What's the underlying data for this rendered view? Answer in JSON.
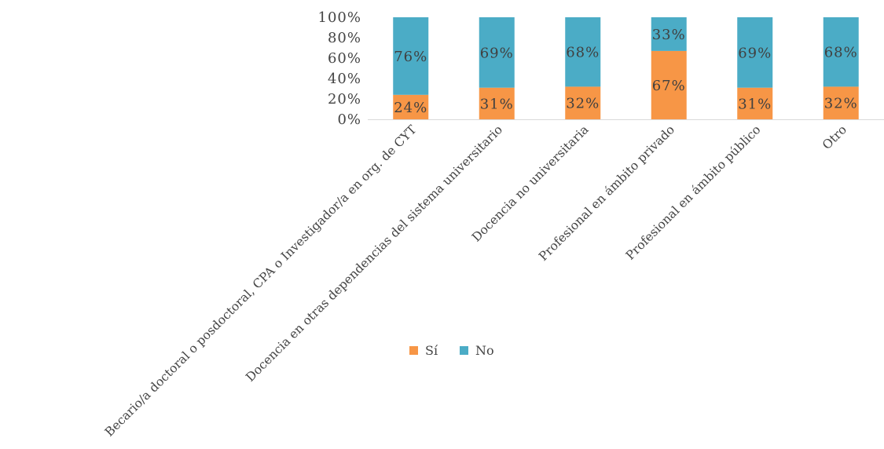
{
  "chart_data": {
    "type": "bar",
    "stacked": true,
    "percent_stacked": true,
    "categories": [
      "Becario/a doctoral o posdoctoral, CPA o Investigador/a en org. de CYT",
      "Docencia en otras dependencias del sistema universitario",
      "Docencia no universitaria",
      "Profesional en ámbito privado",
      "Profesional en ámbito público",
      "Otro"
    ],
    "series": [
      {
        "name": "Sí",
        "color": "#F79646",
        "values": [
          24,
          31,
          32,
          67,
          31,
          32
        ],
        "labels": [
          "24%",
          "31%",
          "32%",
          "67%",
          "31%",
          "32%"
        ]
      },
      {
        "name": "No",
        "color": "#4BACC6",
        "values": [
          76,
          69,
          68,
          33,
          69,
          68
        ],
        "labels": [
          "76%",
          "69%",
          "68%",
          "33%",
          "69%",
          "68%"
        ]
      }
    ],
    "ylim": [
      0,
      100
    ],
    "yticks": [
      "0%",
      "20%",
      "40%",
      "60%",
      "80%",
      "100%"
    ],
    "grid": false,
    "legend_position": "bottom",
    "title": "",
    "xlabel": "",
    "ylabel": ""
  }
}
